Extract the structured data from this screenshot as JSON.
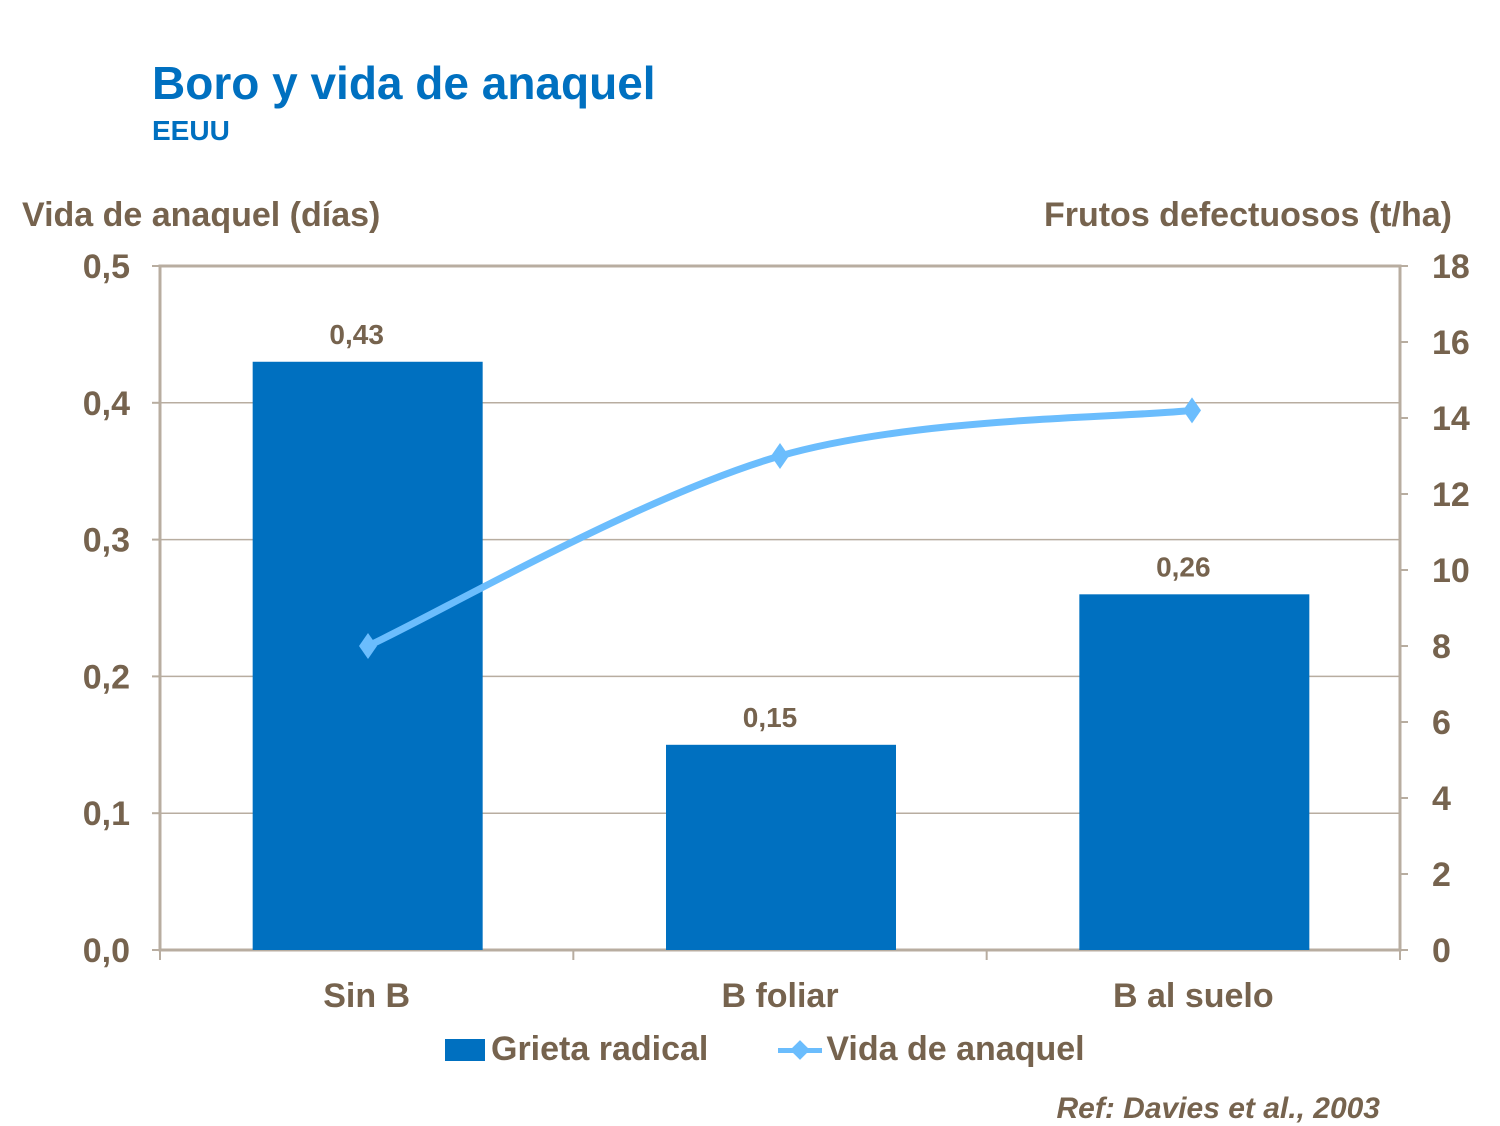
{
  "chart_data": {
    "type": "bar+line",
    "title": "Boro y vida de anaquel",
    "subtitle": "EEUU",
    "ylabel_left": "Vida de anaquel (días)",
    "ylabel_right": "Frutos defectuosos (t/ha)",
    "categories": [
      "Sin B",
      "B foliar",
      "B al suelo"
    ],
    "ylim_left": [
      0,
      0.5
    ],
    "yticks_left": [
      "0,0",
      "0,1",
      "0,2",
      "0,3",
      "0,4",
      "0,5"
    ],
    "ylim_right": [
      0,
      18
    ],
    "yticks_right": [
      "0",
      "2",
      "4",
      "6",
      "8",
      "10",
      "12",
      "14",
      "16",
      "18"
    ],
    "grid": true,
    "legend": "bottom",
    "series": [
      {
        "name": "Grieta radical",
        "type": "bar",
        "axis": "left",
        "values": [
          0.43,
          0.15,
          0.26
        ],
        "labels": [
          "0,43",
          "0,15",
          "0,26"
        ],
        "color": "#0070C0"
      },
      {
        "name": "Vida de anaquel",
        "type": "line",
        "axis": "right",
        "values": [
          8.0,
          13.0,
          14.2
        ],
        "color": "#6BBDFD",
        "marker": "diamond",
        "smooth": true
      }
    ],
    "reference": "Ref: Davies et al., 2003"
  }
}
